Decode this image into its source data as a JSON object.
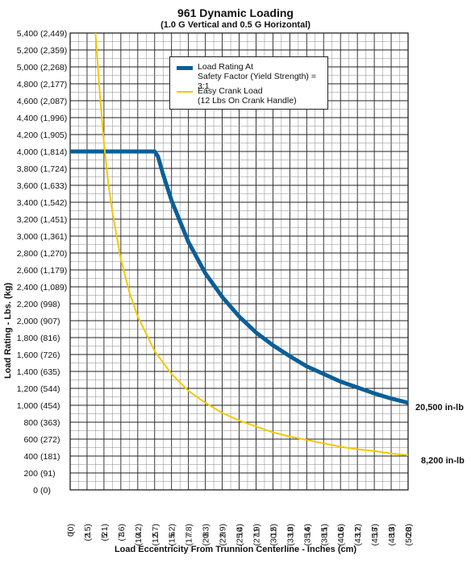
{
  "title": "961 Dynamic Loading",
  "subtitle": "(1.0 G Vertical and 0.5 G Horizontal)",
  "chart_data": {
    "type": "line",
    "title": "961 Dynamic Loading",
    "subtitle": "(1.0 G Vertical and 0.5 G Horizontal)",
    "xlabel": "Load Eccentricity From Trunnion Centerline - Inches (cm)",
    "ylabel": "Load Rating - Lbs. (kg)",
    "xlim": [
      0,
      20
    ],
    "ylim": [
      0,
      5400
    ],
    "grid": true,
    "legend_position": "top-center",
    "x_ticks": [
      "0",
      "1",
      "2",
      "3",
      "4",
      "5",
      "6",
      "7",
      "8",
      "9",
      "10",
      "11",
      "12",
      "13",
      "14",
      "15",
      "16",
      "17",
      "18",
      "19",
      "20"
    ],
    "x_ticks_cm": [
      "(0)",
      "(2.5)",
      "(5.1)",
      "(7.6)",
      "(10.2)",
      "(12.7)",
      "(15.2)",
      "(17.8)",
      "(20.3)",
      "(22.9)",
      "(25.4)",
      "(27.9)",
      "(30.5)",
      "(33.0)",
      "(35.6)",
      "(38.1)",
      "(40.6)",
      "(43.2)",
      "(45.7)",
      "(48.3)",
      "(50.8)"
    ],
    "y_ticks": [
      "0",
      "200",
      "400",
      "600",
      "800",
      "1,000",
      "1,200",
      "1,400",
      "1,600",
      "1,800",
      "2,000",
      "2,200",
      "2,400",
      "2,600",
      "2,800",
      "3,000",
      "3,200",
      "3,400",
      "3,600",
      "3,800",
      "4,000",
      "4,200",
      "4,400",
      "4,600",
      "4,800",
      "5,000",
      "5,200",
      "5,400"
    ],
    "y_ticks_kg": [
      "(0)",
      "(91)",
      "(181)",
      "(272)",
      "(363)",
      "(454)",
      "(544)",
      "(635)",
      "(726)",
      "(816)",
      "(907)",
      "(998)",
      "(1,089)",
      "(1,179)",
      "(1,270)",
      "(1,361)",
      "(1,451)",
      "(1,542)",
      "(1,633)",
      "(1,724)",
      "(1,814)",
      "(1,905)",
      "(1,996)",
      "(2,087)",
      "(2,177)",
      "(2,268)",
      "(2,359)",
      "(2,449)"
    ],
    "series": [
      {
        "name": "Load Rating At Safety Factor (Yield Strength) = 3:1",
        "color": "#0b5f96",
        "x": [
          0,
          1,
          2,
          3,
          4,
          5,
          5.2,
          5.5,
          6,
          7,
          8,
          9,
          10,
          11,
          12,
          13,
          14,
          15,
          16,
          17,
          18,
          19,
          20
        ],
        "y": [
          4000,
          4000,
          4000,
          4000,
          4000,
          4000,
          3940,
          3730,
          3420,
          2930,
          2560,
          2280,
          2050,
          1860,
          1710,
          1580,
          1460,
          1370,
          1280,
          1210,
          1140,
          1080,
          1030
        ],
        "end_label": "20,500 in-lb"
      },
      {
        "name": "Easy Crank Load (12 Lbs On Crank Handle)",
        "color": "#f2c900",
        "x": [
          1.5,
          1.75,
          2,
          2.25,
          2.5,
          3,
          3.5,
          4,
          5,
          6,
          7,
          8,
          9,
          10,
          11,
          12,
          13,
          14,
          15,
          16,
          17,
          18,
          19,
          20
        ],
        "y": [
          5400,
          4690,
          4100,
          3640,
          3280,
          2730,
          2340,
          2050,
          1640,
          1370,
          1170,
          1030,
          910,
          820,
          750,
          680,
          630,
          590,
          550,
          510,
          480,
          460,
          430,
          410
        ],
        "end_label": "8,200 in-lb"
      }
    ]
  },
  "legend": {
    "load_rating_line1": "Load Rating At",
    "load_rating_line2": "Safety Factor (Yield Strength) = 3:1",
    "crank_line1": "Easy Crank Load",
    "crank_line2": "(12 Lbs On Crank Handle)"
  }
}
